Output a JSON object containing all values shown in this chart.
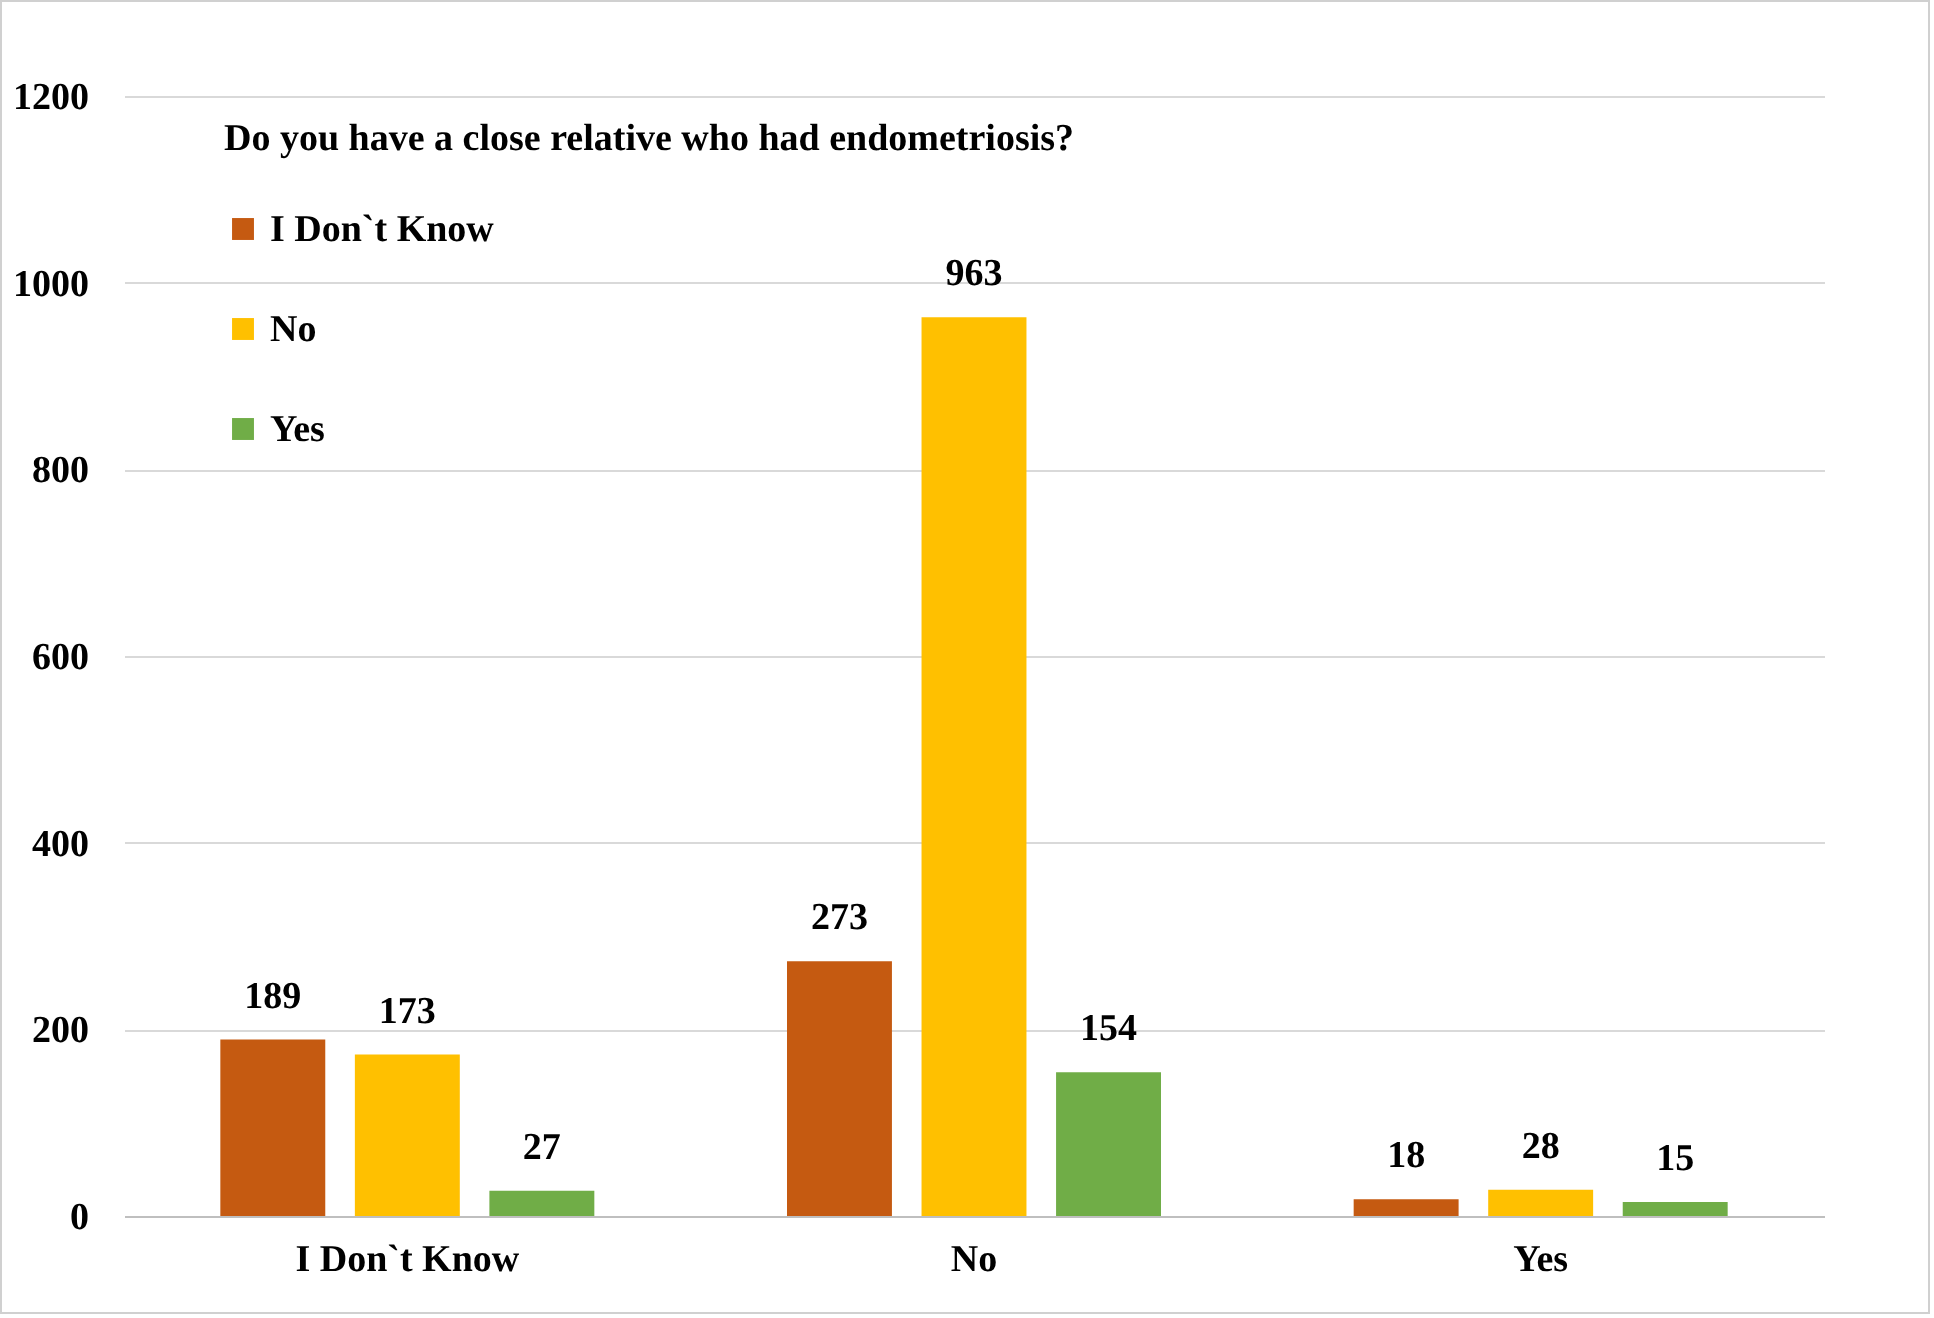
{
  "chart_data": {
    "type": "bar",
    "legend_title": "Do you have a close relative who had endometriosis?",
    "categories": [
      "I Don`t Know",
      "No",
      "Yes"
    ],
    "series": [
      {
        "name": "I Don`t Know",
        "color": "#c55a11",
        "values": [
          189,
          273,
          18
        ]
      },
      {
        "name": "No",
        "color": "#ffc000",
        "values": [
          173,
          963,
          28
        ]
      },
      {
        "name": "Yes",
        "color": "#70ad47",
        "values": [
          27,
          154,
          15
        ]
      }
    ],
    "ylim": [
      0,
      1200
    ],
    "yticks": [
      0,
      200,
      400,
      600,
      800,
      1000,
      1200
    ],
    "grid": "y",
    "legend": "top left",
    "data_labels": true
  }
}
